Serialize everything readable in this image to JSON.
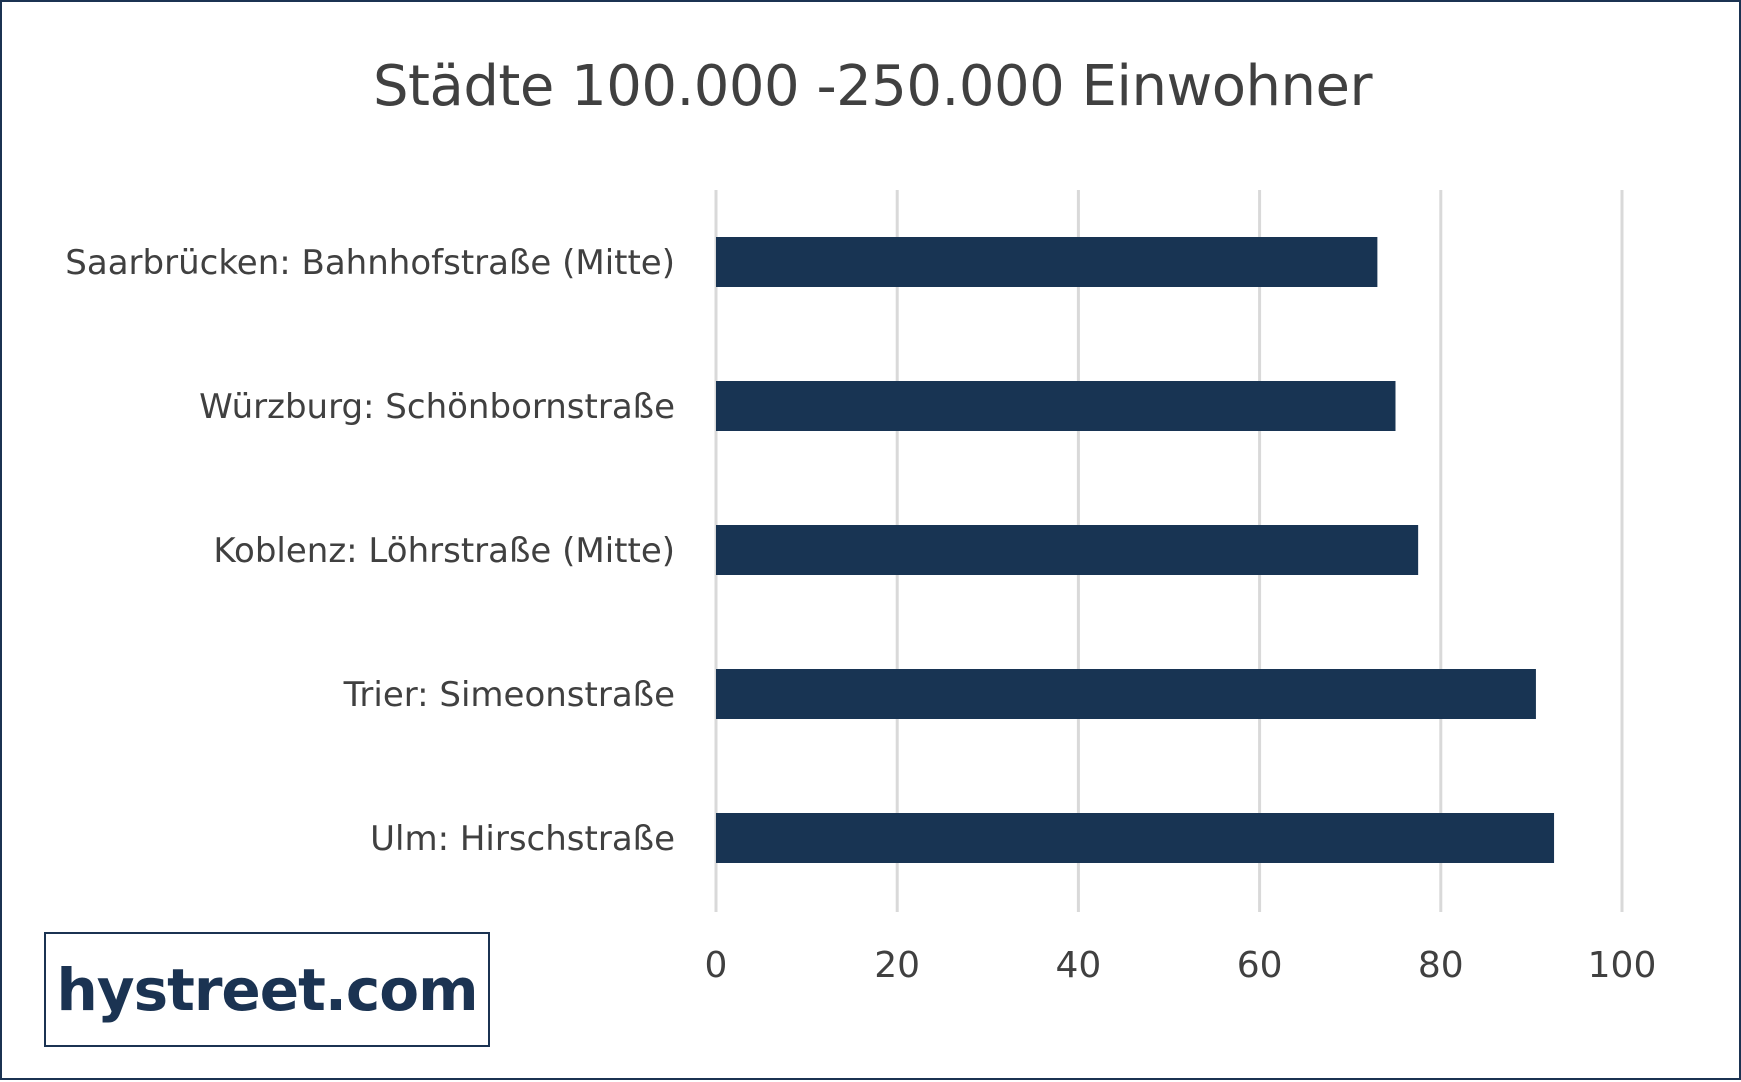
{
  "chart_data": {
    "type": "bar",
    "orientation": "horizontal",
    "title": "Städte 100.000 -250.000 Einwohner",
    "categories": [
      "Saarbrücken: Bahnhofstraße (Mitte)",
      "Würzburg: Schönbornstraße",
      "Koblenz: Löhrstraße (Mitte)",
      "Trier: Simeonstraße",
      "Ulm: Hirschstraße"
    ],
    "values": [
      73,
      75,
      77.5,
      90.5,
      92.5
    ],
    "xlim": [
      0,
      100
    ],
    "xticks": [
      "0",
      "20",
      "40",
      "60",
      "80",
      "100"
    ],
    "grid": "vertical",
    "bar_color": "#183453"
  },
  "logo": {
    "text": "hystreet.com"
  }
}
